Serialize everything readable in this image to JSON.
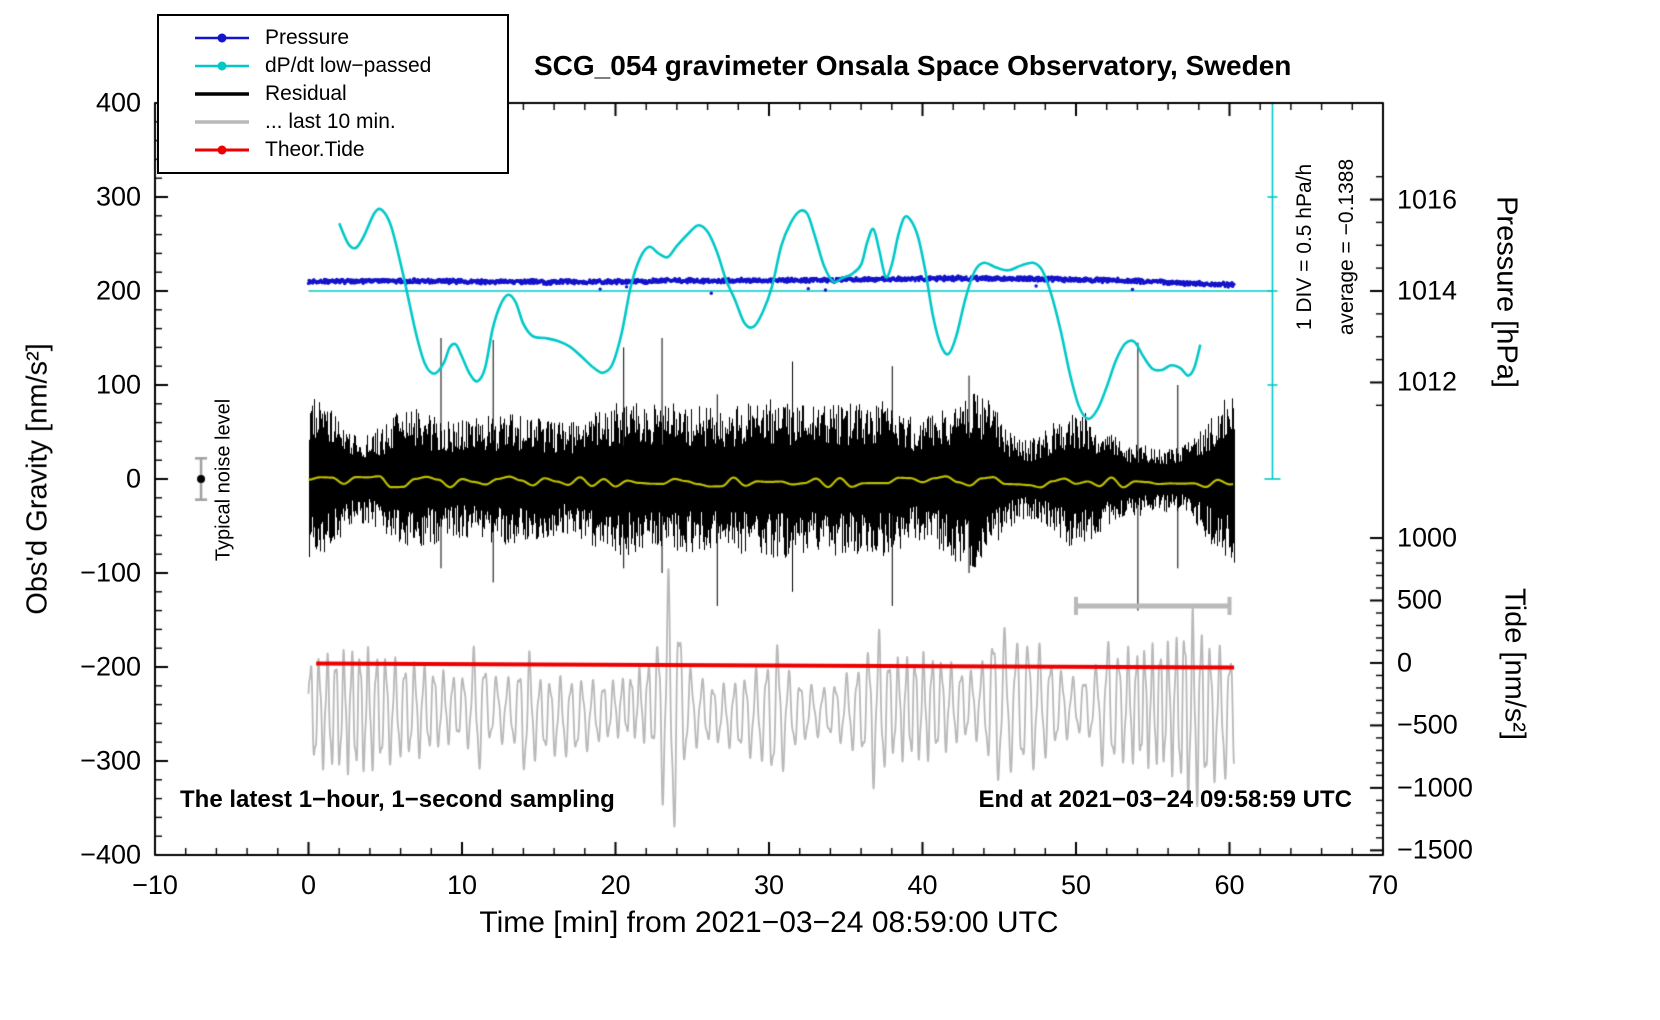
{
  "legend": {
    "items": [
      {
        "label": "Pressure",
        "color": "#1414cc",
        "marker": "line-dot"
      },
      {
        "label": "dP/dt low−passed",
        "color": "#00c8c8",
        "marker": "line-dot"
      },
      {
        "label": "Residual",
        "color": "#000000",
        "marker": "line"
      },
      {
        "label": "... last 10 min.",
        "color": "#b9b9b9",
        "marker": "line"
      },
      {
        "label": "Theor.Tide",
        "color": "#ee0000",
        "marker": "line-dot"
      }
    ]
  },
  "annotations": {
    "noise_level_label": "Typical noise level",
    "div_label": "1 DIV = 0.5 hPa/h",
    "average_label": "average = −0.1388",
    "footer_left": "The latest 1−hour, 1−second sampling",
    "footer_right": "End at 2021−03−24 09:58:59 UTC"
  },
  "chart_data": {
    "type": "line",
    "title": "SCG_054 gravimeter Onsala Space Observatory, Sweden",
    "xlabel": "Time [min] from 2021−03−24 08:59:00 UTC",
    "ylabel_left": "Obs'd Gravity [nm/s²]",
    "ylabel_right_top": "Pressure [hPa]",
    "ylabel_right_bottom": "Tide [nm/s²]",
    "x_range": [
      -10,
      70
    ],
    "y_range_gravity": [
      -400,
      400
    ],
    "grid": false,
    "legend_position": "top-left",
    "x_ticks": [
      -10,
      0,
      10,
      20,
      30,
      40,
      50,
      60,
      70
    ],
    "y_ticks_gravity": [
      400,
      300,
      200,
      100,
      0,
      -100,
      -200,
      -300,
      -400
    ],
    "right_axis_pressure": {
      "tick_values": [
        1016,
        1014,
        1012
      ],
      "gravity_at_1014": 200,
      "gravity_per_hPa": 48.65,
      "minor_step": 0.5
    },
    "right_axis_tide": {
      "tick_values": [
        1000,
        500,
        0,
        -500,
        -1000,
        -1500
      ],
      "gravity_at_0": -195.7,
      "gravity_per_unit": 0.1329,
      "minor_step": 100
    },
    "series": [
      {
        "name": "Pressure",
        "color": "#1414cc",
        "style": "dots",
        "axis": "pressure_hPa",
        "mean_pressure_hPa": 1014.2,
        "jitter": 2.0,
        "trend_gravity_units": [
          [
            0,
            210
          ],
          [
            4,
            210.5
          ],
          [
            8,
            210.5
          ],
          [
            12,
            210
          ],
          [
            16,
            209.5
          ],
          [
            20,
            210
          ],
          [
            24,
            211
          ],
          [
            28,
            211
          ],
          [
            32,
            211.5
          ],
          [
            36,
            212
          ],
          [
            40,
            213
          ],
          [
            43,
            213.5
          ],
          [
            46,
            213
          ],
          [
            49,
            212.5
          ],
          [
            52,
            211.5
          ],
          [
            55,
            210
          ],
          [
            57,
            208.5
          ],
          [
            59,
            207
          ],
          [
            60.3,
            206.5
          ]
        ]
      },
      {
        "name": "dP/dt low−passed",
        "color": "#00c8c8",
        "style": "smooth-line",
        "reference_gravity": 200,
        "div_value": "1 DIV = 0.5 hPa/h",
        "average_hPa_per_h": -0.1388,
        "points_gravity_units": [
          [
            2,
            272
          ],
          [
            2.6,
            250
          ],
          [
            3.1,
            246
          ],
          [
            3.6,
            258
          ],
          [
            4.3,
            283
          ],
          [
            4.8,
            286
          ],
          [
            5.4,
            268
          ],
          [
            6.2,
            215
          ],
          [
            7,
            155
          ],
          [
            7.6,
            122
          ],
          [
            8.2,
            112
          ],
          [
            8.8,
            123
          ],
          [
            9.2,
            140
          ],
          [
            9.6,
            143
          ],
          [
            10,
            130
          ],
          [
            10.5,
            112
          ],
          [
            11,
            104
          ],
          [
            11.5,
            118
          ],
          [
            12,
            160
          ],
          [
            12.5,
            185
          ],
          [
            13,
            196
          ],
          [
            13.5,
            188
          ],
          [
            14,
            165
          ],
          [
            14.6,
            152
          ],
          [
            15.4,
            150
          ],
          [
            16.2,
            147
          ],
          [
            17,
            141
          ],
          [
            17.8,
            130
          ],
          [
            18.6,
            118
          ],
          [
            19.2,
            113
          ],
          [
            19.8,
            122
          ],
          [
            20.4,
            155
          ],
          [
            21,
            205
          ],
          [
            21.6,
            235
          ],
          [
            22.2,
            247
          ],
          [
            22.8,
            240
          ],
          [
            23.4,
            236
          ],
          [
            24,
            248
          ],
          [
            24.8,
            262
          ],
          [
            25.4,
            270
          ],
          [
            26,
            263
          ],
          [
            26.6,
            242
          ],
          [
            27.2,
            212
          ],
          [
            27.8,
            190
          ],
          [
            28.4,
            166
          ],
          [
            29,
            162
          ],
          [
            29.6,
            178
          ],
          [
            30.2,
            205
          ],
          [
            30.8,
            248
          ],
          [
            31.4,
            272
          ],
          [
            32,
            285
          ],
          [
            32.5,
            282
          ],
          [
            33,
            258
          ],
          [
            33.6,
            226
          ],
          [
            34.2,
            210
          ],
          [
            34.8,
            214
          ],
          [
            35.4,
            218
          ],
          [
            36,
            228
          ],
          [
            36.4,
            252
          ],
          [
            36.8,
            266
          ],
          [
            37.2,
            242
          ],
          [
            37.6,
            215
          ],
          [
            38,
            228
          ],
          [
            38.4,
            258
          ],
          [
            38.8,
            278
          ],
          [
            39.2,
            276
          ],
          [
            39.7,
            258
          ],
          [
            40.2,
            220
          ],
          [
            40.7,
            172
          ],
          [
            41.2,
            142
          ],
          [
            41.7,
            133
          ],
          [
            42.2,
            152
          ],
          [
            42.8,
            192
          ],
          [
            43.4,
            221
          ],
          [
            44,
            230
          ],
          [
            44.8,
            225
          ],
          [
            45.6,
            222
          ],
          [
            46.4,
            227
          ],
          [
            47.2,
            230
          ],
          [
            47.8,
            222
          ],
          [
            48.4,
            196
          ],
          [
            49,
            158
          ],
          [
            49.6,
            112
          ],
          [
            50.2,
            77
          ],
          [
            50.8,
            64
          ],
          [
            51.4,
            74
          ],
          [
            52,
            98
          ],
          [
            52.6,
            126
          ],
          [
            53.2,
            144
          ],
          [
            53.8,
            146
          ],
          [
            54.4,
            130
          ],
          [
            55,
            117
          ],
          [
            55.6,
            116
          ],
          [
            56.2,
            121
          ],
          [
            56.8,
            118
          ],
          [
            57.3,
            110
          ],
          [
            57.7,
            118
          ],
          [
            58.1,
            143
          ]
        ]
      },
      {
        "name": "Residual",
        "color": "#000000",
        "style": "noise-band",
        "x_span": [
          0,
          60.3
        ],
        "mean": 0,
        "typical_half_amplitude": 55,
        "extreme_spikes": [
          [
            8.6,
            -95,
            150
          ],
          [
            12,
            -110,
            148
          ],
          [
            20.5,
            -95,
            140
          ],
          [
            23,
            -100,
            150
          ],
          [
            26.6,
            -135,
            90
          ],
          [
            31.5,
            -120,
            125
          ],
          [
            38,
            -135,
            120
          ],
          [
            43,
            -100,
            110
          ],
          [
            54,
            -140,
            145
          ],
          [
            56.6,
            -95,
            100
          ]
        ]
      },
      {
        "name": "Residual low−passed",
        "color": "#bdbd00",
        "style": "line",
        "mean": -3,
        "wiggle": 6,
        "x_span": [
          0,
          60.3
        ]
      },
      {
        "name": "... last 10 min.",
        "color": "#b9b9b9",
        "style": "oscillation",
        "x_span": [
          0,
          60.3
        ],
        "center": -248,
        "period_min_range": [
          0.5,
          0.8
        ],
        "amplitude_range": [
          20,
          62
        ],
        "bursts": [
          [
            11,
            0.5,
            30
          ],
          [
            14.2,
            0.5,
            28
          ],
          [
            23.6,
            0.7,
            85
          ],
          [
            30.5,
            0.5,
            22
          ],
          [
            37,
            0.6,
            30
          ],
          [
            44.8,
            0.7,
            30
          ],
          [
            52,
            0.5,
            18
          ],
          [
            57.6,
            0.8,
            30
          ]
        ]
      },
      {
        "name": "Theor.Tide",
        "color": "#ee0000",
        "style": "line",
        "points_gravity_units": [
          [
            0.5,
            -196.2
          ],
          [
            30,
            -198.5
          ],
          [
            60.3,
            -200.6
          ]
        ]
      }
    ],
    "markers": {
      "noise_level": {
        "x": -7,
        "y": 0,
        "error": 22
      },
      "pressure_reference_line": {
        "y_gravity": 200,
        "x_span": [
          0,
          62.8
        ]
      },
      "div_scale_bar": {
        "x": 62.8,
        "y_span_gravity": [
          0,
          400
        ],
        "tick_step": 100
      },
      "ten_min_scale_bar": {
        "x_span": [
          50,
          60
        ],
        "y_gravity": -135
      }
    }
  }
}
